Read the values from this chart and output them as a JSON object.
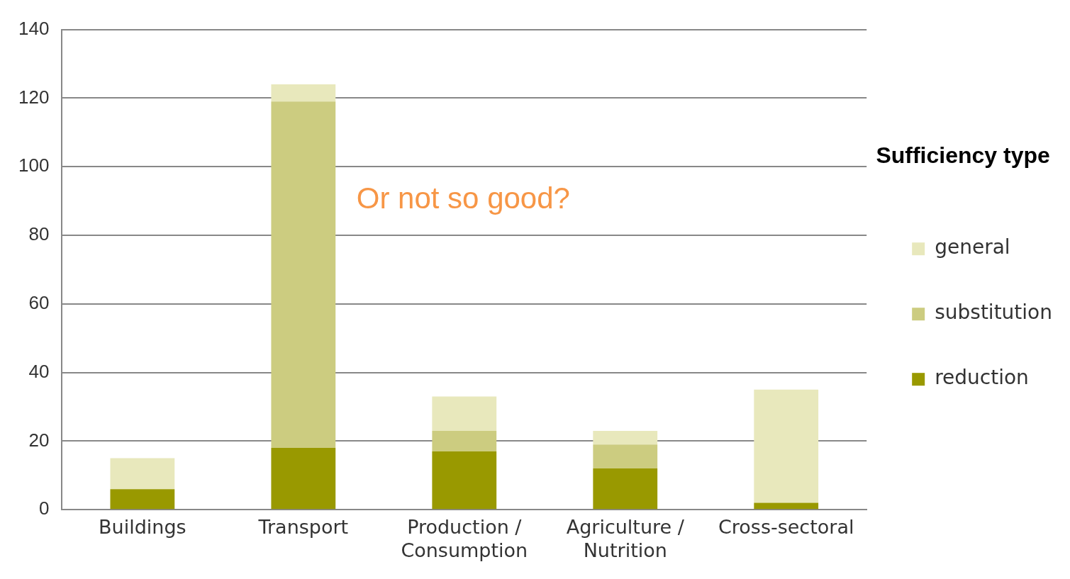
{
  "chart_data": {
    "type": "bar",
    "stacked": true,
    "categories": [
      "Buildings",
      "Transport",
      "Production / Consumption",
      "Agriculture / Nutrition",
      "Cross-sectoral"
    ],
    "series": [
      {
        "name": "reduction",
        "color": "#999900",
        "values": [
          6,
          18,
          17,
          12,
          2
        ]
      },
      {
        "name": "substitution",
        "color": "#cccc80",
        "values": [
          0,
          101,
          6,
          7,
          0
        ]
      },
      {
        "name": "general",
        "color": "#e8e8bc",
        "values": [
          9,
          5,
          10,
          4,
          33
        ]
      }
    ],
    "ylim": [
      0,
      140
    ],
    "yticks": [
      0,
      20,
      40,
      60,
      80,
      100,
      120,
      140
    ],
    "grid": "y",
    "legend": "right",
    "legend_title": "Sufficiency type",
    "annotations": [
      "Or not so good?"
    ]
  }
}
